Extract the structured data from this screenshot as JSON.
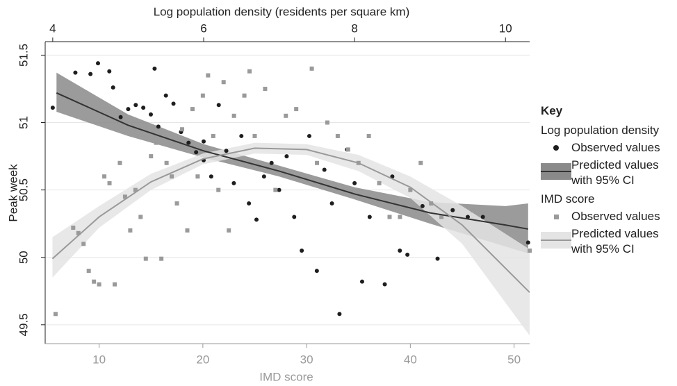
{
  "chart_data": {
    "type": "scatter",
    "xlabel": "IMD score",
    "x2label": "Log population density (residents per square km)",
    "ylabel": "Peak week",
    "legend_title": "Key",
    "xlim": [
      4.8,
      51.5
    ],
    "xticks": [
      10,
      20,
      30,
      40,
      50
    ],
    "x2lim": [
      3.9,
      10.32
    ],
    "x2ticks": [
      4,
      6,
      8,
      10
    ],
    "ylim": [
      49.36,
      51.6
    ],
    "yticks": [
      49.5,
      50,
      50.5,
      51,
      51.5
    ],
    "grid": true,
    "groups": [
      {
        "name": "Log population density",
        "axis": "x2",
        "points": {
          "name": "Observed values",
          "color": "#1e1e1e",
          "marker": "circle",
          "x": [
            4.0,
            4.3,
            4.5,
            4.6,
            4.75,
            4.8,
            4.9,
            5.0,
            5.1,
            5.2,
            5.3,
            5.35,
            5.4,
            5.5,
            5.6,
            5.7,
            5.8,
            5.9,
            6.0,
            6.0,
            6.1,
            6.2,
            6.3,
            6.4,
            6.5,
            6.6,
            6.7,
            6.8,
            6.9,
            7.0,
            7.1,
            7.2,
            7.3,
            7.4,
            7.5,
            7.6,
            7.7,
            7.8,
            7.9,
            8.0,
            8.1,
            8.2,
            8.4,
            8.5,
            8.6,
            8.7,
            8.9,
            9.1,
            9.3,
            9.5,
            9.7,
            10.3
          ],
          "values": [
            51.11,
            51.37,
            51.36,
            51.44,
            51.38,
            51.26,
            51.04,
            51.1,
            51.13,
            51.11,
            51.06,
            51.4,
            50.97,
            51.2,
            51.14,
            50.93,
            50.85,
            50.78,
            50.72,
            50.86,
            50.6,
            51.13,
            50.79,
            50.55,
            50.9,
            50.4,
            50.28,
            50.6,
            50.7,
            50.5,
            50.75,
            50.3,
            50.05,
            50.9,
            49.9,
            50.65,
            50.4,
            49.58,
            50.8,
            50.55,
            49.82,
            50.3,
            49.8,
            50.6,
            50.05,
            50.02,
            50.38,
            49.99,
            50.35,
            50.3,
            50.3,
            50.11
          ]
        },
        "fit": {
          "name": "Predicted values with 95% CI",
          "color": "#333333",
          "band_color": "#8a8a8a",
          "x": [
            4.05,
            5,
            6,
            7,
            8,
            9,
            10,
            10.3
          ],
          "values": [
            51.22,
            50.98,
            50.79,
            50.64,
            50.47,
            50.33,
            50.24,
            50.21
          ],
          "lower": [
            51.08,
            50.9,
            50.74,
            50.6,
            50.43,
            50.25,
            50.08,
            50.03
          ],
          "upper": [
            51.37,
            51.06,
            50.84,
            50.68,
            50.52,
            50.41,
            50.38,
            50.4
          ]
        }
      },
      {
        "name": "IMD score",
        "axis": "x",
        "points": {
          "name": "Observed values",
          "color": "#9a9a9a",
          "marker": "square",
          "x": [
            5.8,
            7.5,
            8.0,
            8.5,
            9,
            9.5,
            10,
            10.5,
            11,
            11.5,
            12,
            12.5,
            13,
            13.5,
            14,
            14.5,
            15,
            15.5,
            16,
            16.5,
            17,
            17.5,
            18,
            18.5,
            19,
            19.5,
            20,
            20.5,
            21,
            21.5,
            22,
            22.5,
            23,
            24,
            24.5,
            25,
            26,
            27,
            28,
            29,
            30.5,
            31,
            32,
            33,
            34,
            35,
            36,
            37,
            38,
            39,
            40,
            41,
            42,
            43,
            46,
            51.5
          ],
          "values": [
            49.58,
            50.22,
            50.18,
            50.1,
            49.9,
            49.82,
            49.8,
            50.6,
            50.55,
            49.8,
            50.7,
            50.45,
            50.2,
            50.5,
            50.3,
            49.99,
            50.75,
            50.85,
            49.99,
            50.7,
            50.6,
            50.4,
            50.95,
            50.2,
            51.1,
            50.6,
            51.2,
            51.35,
            50.9,
            50.5,
            51.3,
            50.2,
            51.05,
            51.2,
            51.38,
            50.9,
            51.25,
            50.5,
            51.05,
            51.1,
            51.4,
            50.7,
            51.0,
            50.9,
            50.8,
            50.7,
            50.9,
            50.55,
            50.3,
            50.3,
            50.5,
            50.7,
            50.4,
            50.3,
            50.35,
            50.05
          ]
        },
        "fit": {
          "name": "Predicted values with 95% CI",
          "color": "#999999",
          "band_color": "#e4e4e4",
          "x": [
            5.5,
            10,
            15,
            20,
            25,
            30,
            35,
            40,
            45,
            51.5
          ],
          "values": [
            49.99,
            50.3,
            50.56,
            50.73,
            50.81,
            50.8,
            50.7,
            50.52,
            50.24,
            49.74
          ],
          "lower": [
            49.85,
            50.22,
            50.5,
            50.69,
            50.77,
            50.76,
            50.64,
            50.44,
            50.1,
            49.42
          ],
          "upper": [
            50.15,
            50.38,
            50.62,
            50.77,
            50.85,
            50.84,
            50.76,
            50.6,
            50.38,
            50.06
          ]
        }
      }
    ]
  }
}
